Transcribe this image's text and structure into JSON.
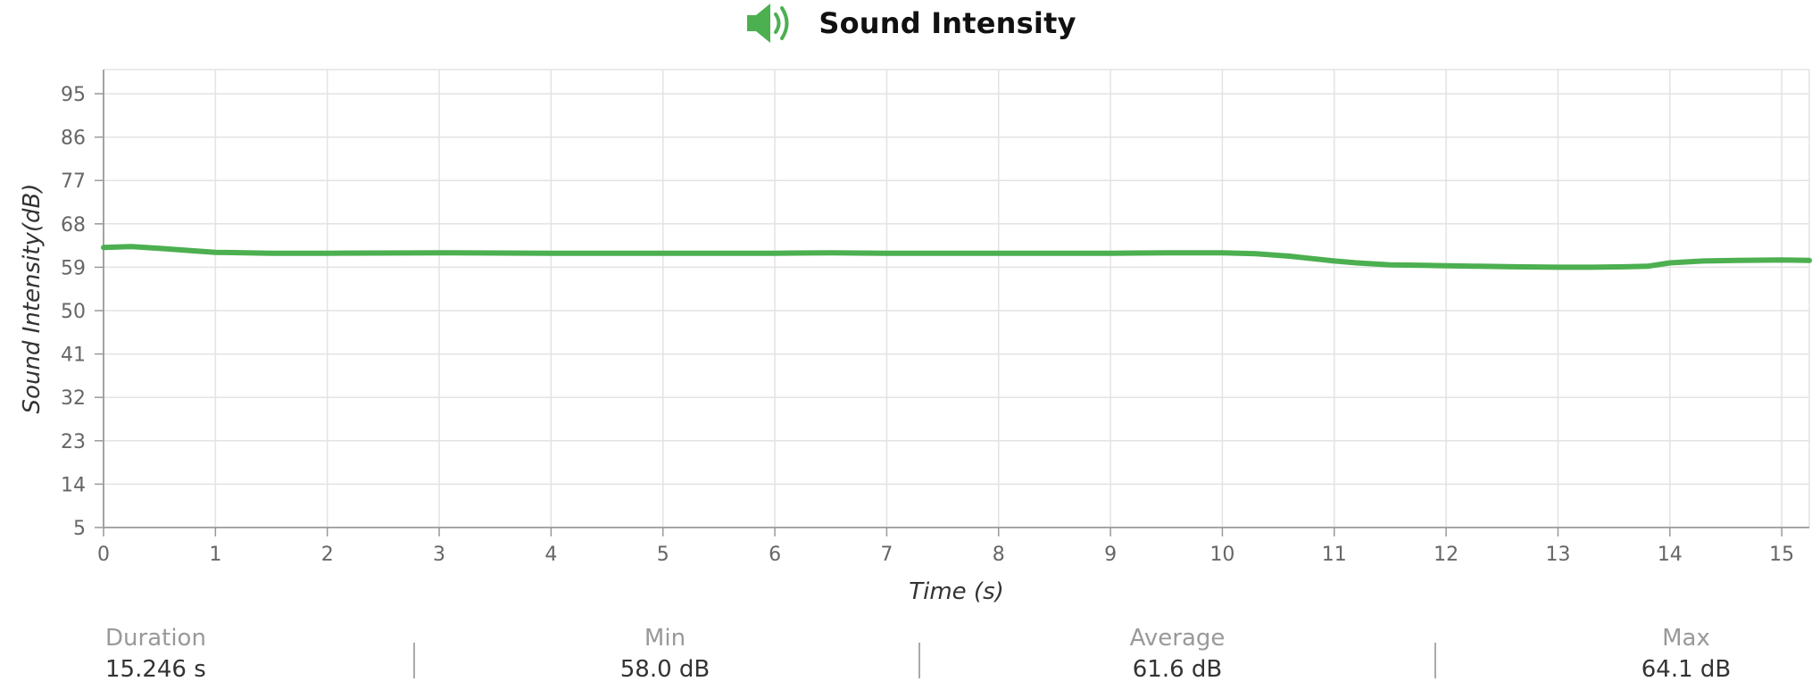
{
  "header": {
    "title": "Sound Intensity",
    "icon": "speaker-volume-icon",
    "accent_color": "#4caf50"
  },
  "chart_data": {
    "type": "line",
    "title": "Sound Intensity",
    "xlabel": "Time (s)",
    "ylabel": "Sound Intensity(dB)",
    "xlim": [
      0,
      15.246
    ],
    "ylim": [
      5,
      100
    ],
    "x_ticks": [
      0,
      1,
      2,
      3,
      4,
      5,
      6,
      7,
      8,
      9,
      10,
      11,
      12,
      13,
      14,
      15
    ],
    "y_ticks": [
      5,
      14,
      23,
      32,
      41,
      50,
      59,
      68,
      77,
      86,
      95
    ],
    "grid": true,
    "legend": "none",
    "series": [
      {
        "color": "#4caf50",
        "x": [
          0,
          0.25,
          0.5,
          0.75,
          1,
          1.5,
          2,
          3,
          4,
          5,
          6,
          6.5,
          7,
          8,
          9,
          9.5,
          10,
          10.3,
          10.6,
          10.8,
          11,
          11.2,
          11.5,
          11.8,
          12,
          12.3,
          12.6,
          13,
          13.3,
          13.6,
          13.8,
          14,
          14.3,
          14.6,
          15,
          15.246
        ],
        "values": [
          63.1,
          63.3,
          62.9,
          62.5,
          62.1,
          61.9,
          61.9,
          62.0,
          61.9,
          61.9,
          61.9,
          62.0,
          61.9,
          61.9,
          61.9,
          62.0,
          62.0,
          61.8,
          61.3,
          60.8,
          60.3,
          59.9,
          59.5,
          59.4,
          59.3,
          59.2,
          59.1,
          59.0,
          59.0,
          59.1,
          59.2,
          59.9,
          60.3,
          60.4,
          60.5,
          60.4
        ]
      }
    ]
  },
  "stats": [
    {
      "label": "Duration",
      "value": "15.246 s"
    },
    {
      "label": "Min",
      "value": "58.0 dB"
    },
    {
      "label": "Average",
      "value": "61.6 dB"
    },
    {
      "label": "Max",
      "value": "64.1 dB"
    }
  ]
}
